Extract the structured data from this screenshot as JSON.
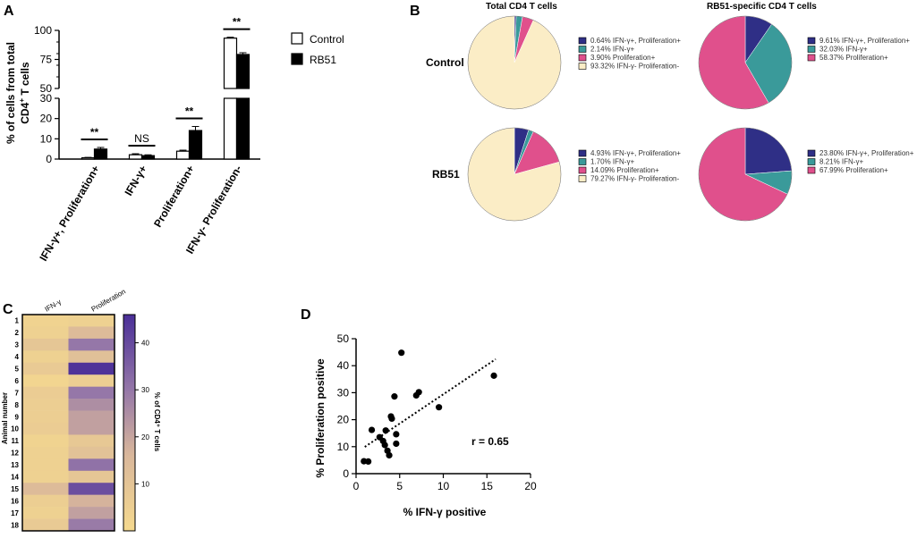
{
  "panel_labels": {
    "a": "A",
    "b": "B",
    "c": "C",
    "d": "D"
  },
  "colors": {
    "dark_blue": "#2f2f86",
    "teal": "#3a9a9a",
    "pink": "#e0508c",
    "cream": "#fbedc6",
    "control_fill": "#ffffff",
    "rb51_fill": "#000000",
    "heat_low": "#f5d98e",
    "heat_high": "#4a2f98"
  },
  "chart_data": [
    {
      "id": "A",
      "type": "bar",
      "ylabel_line1": "% of cells from total",
      "ylabel_line2_pre": "CD4",
      "ylabel_line2_sup": "+",
      "ylabel_line2_post": " T cells",
      "categories": [
        "IFN-γ+, Proliferation+",
        "IFN-γ+",
        "Proliferation+",
        "IFN-γ- Proliferation-"
      ],
      "series": [
        {
          "name": "Control",
          "values": [
            0.64,
            2.14,
            3.9,
            93.32
          ],
          "errors": [
            0.2,
            0.5,
            0.5,
            0.8
          ]
        },
        {
          "name": "RB51",
          "values": [
            4.93,
            1.7,
            14.09,
            79.27
          ],
          "errors": [
            0.8,
            0.4,
            2.0,
            1.5
          ]
        }
      ],
      "y_lower_ticks": [
        "0",
        "10",
        "20",
        "30"
      ],
      "y_upper_ticks": [
        "50",
        "75",
        "100"
      ],
      "ylim_lower": [
        0,
        30
      ],
      "ylim_upper": [
        50,
        100
      ],
      "significance": [
        "**",
        "NS",
        "**",
        "**"
      ]
    },
    {
      "id": "B",
      "type": "pie",
      "col_titles": [
        "Total CD4 T cells",
        "RB51-specific CD4 T cells"
      ],
      "row_labels": [
        "Control",
        "RB51"
      ],
      "pies": [
        {
          "row": 0,
          "col": 0,
          "slices": [
            0.64,
            2.14,
            3.9,
            93.32
          ],
          "labels": [
            "0.64%  IFN-γ+, Proliferation+",
            "2.14%  IFN-γ+",
            "3.90%  Proliferation+",
            "93.32%  IFN-γ- Proliferation-"
          ]
        },
        {
          "row": 0,
          "col": 1,
          "slices": [
            9.61,
            32.03,
            58.37
          ],
          "labels": [
            "9.61%  IFN-γ+, Proliferation+",
            "32.03%  IFN-γ+",
            "58.37%  Proliferation+"
          ]
        },
        {
          "row": 1,
          "col": 0,
          "slices": [
            4.93,
            1.7,
            14.09,
            79.27
          ],
          "labels": [
            "4.93%  IFN-γ+, Proliferation+",
            "1.70%  IFN-γ+",
            "14.09%  Proliferation+",
            "79.27%  IFN-γ- Proliferation-"
          ]
        },
        {
          "row": 1,
          "col": 1,
          "slices": [
            23.8,
            8.21,
            67.99
          ],
          "labels": [
            "23.80%  IFN-γ+, Proliferation+",
            "8.21%  IFN-γ+",
            "67.99%  Proliferation+"
          ]
        }
      ]
    },
    {
      "id": "C",
      "type": "heatmap",
      "columns": [
        "IFN-γ",
        "Proliferation"
      ],
      "ylabel": "Animal number",
      "rows": [
        "1",
        "2",
        "3",
        "4",
        "5",
        "6",
        "7",
        "8",
        "9",
        "10",
        "11",
        "12",
        "13",
        "14",
        "15",
        "16",
        "17",
        "18"
      ],
      "values": [
        [
          3,
          4
        ],
        [
          4,
          14
        ],
        [
          9,
          30
        ],
        [
          4,
          12
        ],
        [
          7,
          45
        ],
        [
          2,
          5
        ],
        [
          6,
          30
        ],
        [
          5,
          25
        ],
        [
          5,
          21
        ],
        [
          6,
          21
        ],
        [
          3,
          8
        ],
        [
          4,
          11
        ],
        [
          4,
          31
        ],
        [
          4,
          9
        ],
        [
          14,
          39
        ],
        [
          5,
          17
        ],
        [
          4,
          21
        ],
        [
          7,
          29
        ]
      ],
      "colorbar_ticks": [
        "10",
        "20",
        "30",
        "40"
      ],
      "colorbar_range": [
        0,
        46
      ],
      "colorbar_label": "% of CD4⁺ T cells"
    },
    {
      "id": "D",
      "type": "scatter",
      "xlabel": "% IFN-γ positive",
      "ylabel": "% Proliferation positive",
      "xlim": [
        0,
        20
      ],
      "ylim": [
        0,
        50
      ],
      "xticks": [
        "0",
        "5",
        "10",
        "15",
        "20"
      ],
      "yticks": [
        "0",
        "10",
        "20",
        "30",
        "40",
        "50"
      ],
      "points": [
        [
          0.9,
          4.6
        ],
        [
          1.4,
          4.5
        ],
        [
          1.8,
          16.2
        ],
        [
          2.7,
          13.5
        ],
        [
          3.1,
          12.1
        ],
        [
          3.3,
          10.6
        ],
        [
          3.4,
          16.0
        ],
        [
          3.6,
          8.5
        ],
        [
          3.8,
          6.8
        ],
        [
          4.0,
          21.2
        ],
        [
          4.1,
          20.4
        ],
        [
          4.4,
          28.6
        ],
        [
          4.6,
          14.6
        ],
        [
          4.6,
          11.1
        ],
        [
          5.2,
          44.8
        ],
        [
          6.9,
          29.0
        ],
        [
          7.2,
          30.2
        ],
        [
          9.5,
          24.6
        ],
        [
          15.8,
          36.3
        ]
      ],
      "fit_line": [
        [
          1,
          9.9
        ],
        [
          16,
          42.4
        ]
      ],
      "annotation": "r = 0.65"
    }
  ],
  "legend_a": {
    "control": "Control",
    "rb51": "RB51"
  }
}
